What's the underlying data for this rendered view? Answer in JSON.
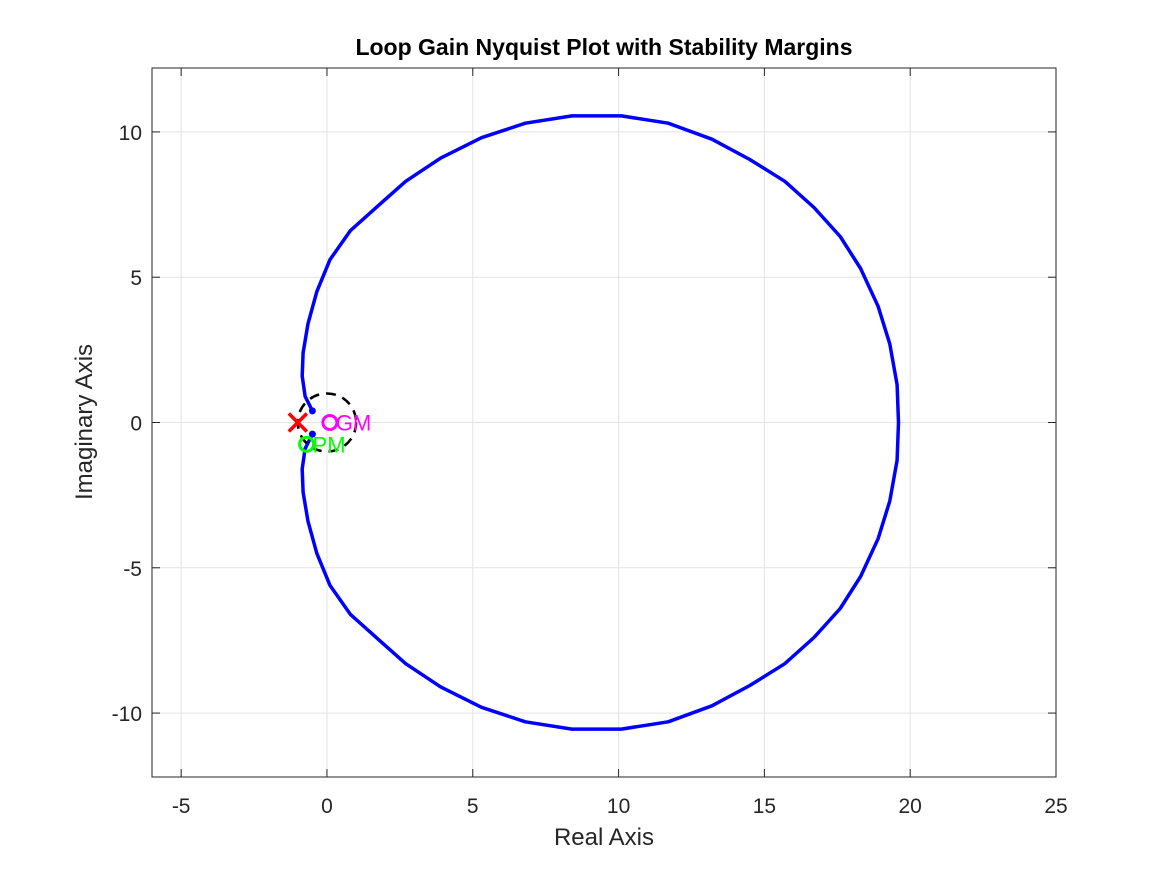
{
  "chart_data": {
    "type": "line",
    "title": "Loop Gain Nyquist Plot with Stability Margins",
    "xlabel": "Real Axis",
    "ylabel": "Imaginary Axis",
    "xlim": [
      -6,
      25
    ],
    "ylim": [
      -12.2,
      12.2
    ],
    "xticks": [
      -5,
      0,
      5,
      10,
      15,
      20,
      25
    ],
    "yticks": [
      -10,
      -5,
      0,
      5,
      10
    ],
    "xtick_labels": [
      "-5",
      "0",
      "5",
      "10",
      "15",
      "20",
      "25"
    ],
    "ytick_labels": [
      "-10",
      "-5",
      "0",
      "5",
      "10"
    ],
    "grid": true,
    "series": [
      {
        "color": "#0000ff",
        "points": [
          [
            -0.5,
            0.4
          ],
          [
            -0.75,
            0.9
          ],
          [
            -0.85,
            1.6
          ],
          [
            -0.82,
            2.4
          ],
          [
            -0.65,
            3.4
          ],
          [
            -0.35,
            4.5
          ],
          [
            0.1,
            5.6
          ],
          [
            0.8,
            6.6
          ],
          [
            1.8,
            7.5
          ],
          [
            2.7,
            8.3
          ],
          [
            3.9,
            9.1
          ],
          [
            5.3,
            9.8
          ],
          [
            6.8,
            10.3
          ],
          [
            8.4,
            10.55
          ],
          [
            10.1,
            10.55
          ],
          [
            11.7,
            10.3
          ],
          [
            13.2,
            9.75
          ],
          [
            14.5,
            9.05
          ],
          [
            15.7,
            8.3
          ],
          [
            16.7,
            7.4
          ],
          [
            17.6,
            6.4
          ],
          [
            18.3,
            5.3
          ],
          [
            18.9,
            4.0
          ],
          [
            19.3,
            2.7
          ],
          [
            19.55,
            1.3
          ],
          [
            19.6,
            0.0
          ],
          [
            19.55,
            -1.3
          ],
          [
            19.3,
            -2.7
          ],
          [
            18.9,
            -4.0
          ],
          [
            18.3,
            -5.3
          ],
          [
            17.6,
            -6.4
          ],
          [
            16.7,
            -7.4
          ],
          [
            15.7,
            -8.3
          ],
          [
            14.5,
            -9.05
          ],
          [
            13.2,
            -9.75
          ],
          [
            11.7,
            -10.3
          ],
          [
            10.1,
            -10.55
          ],
          [
            8.4,
            -10.55
          ],
          [
            6.8,
            -10.3
          ],
          [
            5.3,
            -9.8
          ],
          [
            3.9,
            -9.1
          ],
          [
            2.7,
            -8.3
          ],
          [
            1.8,
            -7.5
          ],
          [
            0.8,
            -6.6
          ],
          [
            0.1,
            -5.6
          ],
          [
            -0.35,
            -4.5
          ],
          [
            -0.65,
            -3.4
          ],
          [
            -0.82,
            -2.4
          ],
          [
            -0.85,
            -1.6
          ],
          [
            -0.75,
            -0.9
          ],
          [
            -0.5,
            -0.4
          ]
        ]
      }
    ],
    "unit_circle": {
      "center": [
        0,
        0
      ],
      "radius": 1,
      "color": "#000000",
      "style": "dashed"
    },
    "annotations": [
      {
        "label": "GM",
        "x": 0.1,
        "y": 0.0,
        "marker": "o",
        "color": "#ff00ff"
      },
      {
        "label": "PM",
        "x": -0.7,
        "y": -0.75,
        "marker": "o",
        "color": "#00ff00"
      }
    ],
    "critical_point": {
      "x": -1,
      "y": 0,
      "marker": "x",
      "color": "#ff0000"
    },
    "extra_markers": [
      {
        "x": -0.5,
        "y": 0.4,
        "color": "#0000ff"
      },
      {
        "x": -0.5,
        "y": -0.4,
        "color": "#0000ff"
      }
    ]
  }
}
